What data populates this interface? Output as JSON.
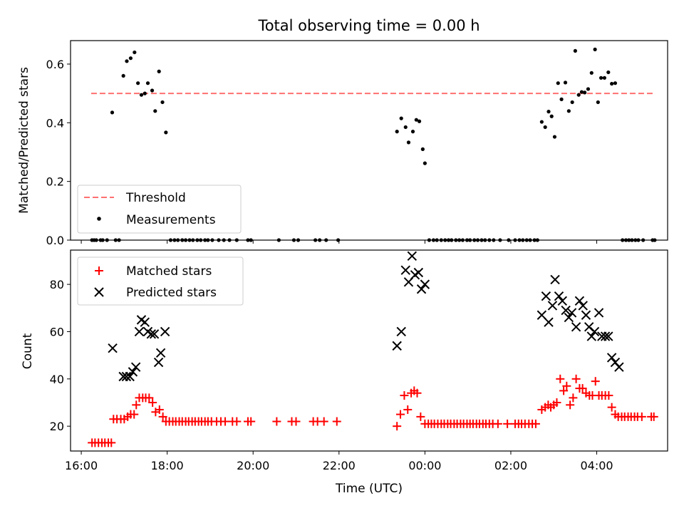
{
  "chart_data": [
    {
      "type": "scatter",
      "title": "Total observing time = 0.00 h",
      "xlabel": "",
      "ylabel": "Matched/Predicted stars",
      "xlim": [
        15.75,
        29.65
      ],
      "ylim": [
        0.0,
        0.68
      ],
      "yticks": [
        0.0,
        0.2,
        0.4,
        0.6
      ],
      "ytick_labels": [
        "0.0",
        "0.2",
        "0.4",
        "0.6"
      ],
      "xticks": [
        16,
        18,
        20,
        22,
        24,
        26,
        28
      ],
      "threshold": {
        "name": "Threshold",
        "value": 0.5,
        "x_range": [
          16.23,
          29.33
        ],
        "color": "#ff7070"
      },
      "measurements_name": "Measurements",
      "legend_position": "lower-left",
      "grid": false,
      "points": [
        [
          16.25,
          0.0
        ],
        [
          16.3,
          0.0
        ],
        [
          16.35,
          0.0
        ],
        [
          16.45,
          0.0
        ],
        [
          16.5,
          0.0
        ],
        [
          16.6,
          0.0
        ],
        [
          16.72,
          0.435
        ],
        [
          16.8,
          0.0
        ],
        [
          16.88,
          0.0
        ],
        [
          16.98,
          0.56
        ],
        [
          17.06,
          0.61
        ],
        [
          17.15,
          0.62
        ],
        [
          17.24,
          0.64
        ],
        [
          17.32,
          0.535
        ],
        [
          17.4,
          0.495
        ],
        [
          17.48,
          0.5
        ],
        [
          17.55,
          0.535
        ],
        [
          17.65,
          0.51
        ],
        [
          17.72,
          0.44
        ],
        [
          17.81,
          0.575
        ],
        [
          17.89,
          0.47
        ],
        [
          17.97,
          0.367
        ],
        [
          18.08,
          0.0
        ],
        [
          18.17,
          0.0
        ],
        [
          18.25,
          0.0
        ],
        [
          18.35,
          0.0
        ],
        [
          18.43,
          0.0
        ],
        [
          18.52,
          0.0
        ],
        [
          18.6,
          0.0
        ],
        [
          18.7,
          0.0
        ],
        [
          18.78,
          0.0
        ],
        [
          18.88,
          0.0
        ],
        [
          18.95,
          0.0
        ],
        [
          19.05,
          0.0
        ],
        [
          19.2,
          0.0
        ],
        [
          19.32,
          0.0
        ],
        [
          19.45,
          0.0
        ],
        [
          19.62,
          0.0
        ],
        [
          19.88,
          0.0
        ],
        [
          19.95,
          0.0
        ],
        [
          20.6,
          0.0
        ],
        [
          20.95,
          0.0
        ],
        [
          21.05,
          0.0
        ],
        [
          21.45,
          0.0
        ],
        [
          21.55,
          0.0
        ],
        [
          21.7,
          0.0
        ],
        [
          21.98,
          0.0
        ],
        [
          23.35,
          0.37
        ],
        [
          23.45,
          0.415
        ],
        [
          23.55,
          0.385
        ],
        [
          23.62,
          0.333
        ],
        [
          23.72,
          0.37
        ],
        [
          23.8,
          0.41
        ],
        [
          23.87,
          0.405
        ],
        [
          23.95,
          0.31
        ],
        [
          24.0,
          0.262
        ],
        [
          24.1,
          0.0
        ],
        [
          24.2,
          0.0
        ],
        [
          24.28,
          0.0
        ],
        [
          24.38,
          0.0
        ],
        [
          24.47,
          0.0
        ],
        [
          24.55,
          0.0
        ],
        [
          24.62,
          0.0
        ],
        [
          24.72,
          0.0
        ],
        [
          24.8,
          0.0
        ],
        [
          24.88,
          0.0
        ],
        [
          24.98,
          0.0
        ],
        [
          25.05,
          0.0
        ],
        [
          25.15,
          0.0
        ],
        [
          25.23,
          0.0
        ],
        [
          25.32,
          0.0
        ],
        [
          25.4,
          0.0
        ],
        [
          25.5,
          0.0
        ],
        [
          25.6,
          0.0
        ],
        [
          25.75,
          0.0
        ],
        [
          25.95,
          0.0
        ],
        [
          26.1,
          0.0
        ],
        [
          26.2,
          0.0
        ],
        [
          26.28,
          0.0
        ],
        [
          26.37,
          0.0
        ],
        [
          26.45,
          0.0
        ],
        [
          26.55,
          0.0
        ],
        [
          26.62,
          0.0
        ],
        [
          26.72,
          0.403
        ],
        [
          26.8,
          0.385
        ],
        [
          26.88,
          0.438
        ],
        [
          26.95,
          0.422
        ],
        [
          27.02,
          0.352
        ],
        [
          27.1,
          0.535
        ],
        [
          27.18,
          0.48
        ],
        [
          27.27,
          0.537
        ],
        [
          27.35,
          0.44
        ],
        [
          27.43,
          0.47
        ],
        [
          27.5,
          0.645
        ],
        [
          27.58,
          0.495
        ],
        [
          27.65,
          0.505
        ],
        [
          27.72,
          0.503
        ],
        [
          27.8,
          0.515
        ],
        [
          27.88,
          0.57
        ],
        [
          27.96,
          0.65
        ],
        [
          28.03,
          0.47
        ],
        [
          28.1,
          0.553
        ],
        [
          28.18,
          0.553
        ],
        [
          28.27,
          0.572
        ],
        [
          28.35,
          0.533
        ],
        [
          28.43,
          0.535
        ],
        [
          28.6,
          0.0
        ],
        [
          28.68,
          0.0
        ],
        [
          28.75,
          0.0
        ],
        [
          28.82,
          0.0
        ],
        [
          28.9,
          0.0
        ],
        [
          28.97,
          0.0
        ],
        [
          29.08,
          0.0
        ],
        [
          29.3,
          0.0
        ],
        [
          29.35,
          0.0
        ]
      ]
    },
    {
      "type": "scatter",
      "title": "",
      "xlabel": "Time (UTC)",
      "ylabel": "Count",
      "xlim": [
        15.75,
        29.65
      ],
      "ylim": [
        9.5,
        94.5
      ],
      "yticks": [
        20,
        40,
        60,
        80
      ],
      "ytick_labels": [
        "20",
        "40",
        "60",
        "80"
      ],
      "xticks": [
        16,
        18,
        20,
        22,
        24,
        26,
        28
      ],
      "xtick_labels": [
        "16:00",
        "18:00",
        "20:00",
        "22:00",
        "00:00",
        "02:00",
        "04:00"
      ],
      "legend_position": "upper-left",
      "grid": false,
      "series": [
        {
          "name": "Matched stars",
          "marker": "+",
          "color": "#ff0000",
          "points": [
            [
              16.25,
              13
            ],
            [
              16.32,
              13
            ],
            [
              16.4,
              13
            ],
            [
              16.48,
              13
            ],
            [
              16.55,
              13
            ],
            [
              16.63,
              13
            ],
            [
              16.7,
              13
            ],
            [
              16.75,
              23
            ],
            [
              16.83,
              23
            ],
            [
              16.92,
              23
            ],
            [
              17.0,
              23
            ],
            [
              17.08,
              24
            ],
            [
              17.15,
              25
            ],
            [
              17.23,
              25
            ],
            [
              17.28,
              29
            ],
            [
              17.35,
              32
            ],
            [
              17.43,
              32
            ],
            [
              17.5,
              32
            ],
            [
              17.58,
              32
            ],
            [
              17.66,
              30
            ],
            [
              17.73,
              26
            ],
            [
              17.82,
              27
            ],
            [
              17.9,
              24
            ],
            [
              17.97,
              22
            ],
            [
              18.05,
              22
            ],
            [
              18.13,
              22
            ],
            [
              18.2,
              22
            ],
            [
              18.28,
              22
            ],
            [
              18.35,
              22
            ],
            [
              18.43,
              22
            ],
            [
              18.5,
              22
            ],
            [
              18.58,
              22
            ],
            [
              18.65,
              22
            ],
            [
              18.73,
              22
            ],
            [
              18.8,
              22
            ],
            [
              18.88,
              22
            ],
            [
              18.95,
              22
            ],
            [
              19.03,
              22
            ],
            [
              19.15,
              22
            ],
            [
              19.25,
              22
            ],
            [
              19.35,
              22
            ],
            [
              19.52,
              22
            ],
            [
              19.62,
              22
            ],
            [
              19.88,
              22
            ],
            [
              19.95,
              22
            ],
            [
              20.55,
              22
            ],
            [
              20.9,
              22
            ],
            [
              21.0,
              22
            ],
            [
              21.4,
              22
            ],
            [
              21.5,
              22
            ],
            [
              21.65,
              22
            ],
            [
              21.95,
              22
            ],
            [
              23.35,
              20
            ],
            [
              23.43,
              25
            ],
            [
              23.52,
              33
            ],
            [
              23.6,
              27
            ],
            [
              23.68,
              34
            ],
            [
              23.75,
              35
            ],
            [
              23.82,
              34
            ],
            [
              23.9,
              24
            ],
            [
              24.0,
              21
            ],
            [
              24.08,
              21
            ],
            [
              24.15,
              21
            ],
            [
              24.22,
              21
            ],
            [
              24.3,
              21
            ],
            [
              24.38,
              21
            ],
            [
              24.45,
              21
            ],
            [
              24.53,
              21
            ],
            [
              24.6,
              21
            ],
            [
              24.68,
              21
            ],
            [
              24.75,
              21
            ],
            [
              24.83,
              21
            ],
            [
              24.9,
              21
            ],
            [
              24.98,
              21
            ],
            [
              25.05,
              21
            ],
            [
              25.12,
              21
            ],
            [
              25.2,
              21
            ],
            [
              25.27,
              21
            ],
            [
              25.35,
              21
            ],
            [
              25.42,
              21
            ],
            [
              25.5,
              21
            ],
            [
              25.58,
              21
            ],
            [
              25.7,
              21
            ],
            [
              25.92,
              21
            ],
            [
              26.1,
              21
            ],
            [
              26.18,
              21
            ],
            [
              26.25,
              21
            ],
            [
              26.33,
              21
            ],
            [
              26.42,
              21
            ],
            [
              26.5,
              21
            ],
            [
              26.58,
              21
            ],
            [
              26.72,
              27
            ],
            [
              26.8,
              28
            ],
            [
              26.87,
              29
            ],
            [
              26.93,
              28
            ],
            [
              27.0,
              29
            ],
            [
              27.07,
              30
            ],
            [
              27.15,
              40
            ],
            [
              27.23,
              35
            ],
            [
              27.3,
              37
            ],
            [
              27.38,
              29
            ],
            [
              27.45,
              32
            ],
            [
              27.52,
              40
            ],
            [
              27.6,
              36
            ],
            [
              27.67,
              36
            ],
            [
              27.75,
              34
            ],
            [
              27.83,
              33
            ],
            [
              27.9,
              33
            ],
            [
              27.97,
              39
            ],
            [
              28.05,
              33
            ],
            [
              28.12,
              33
            ],
            [
              28.2,
              33
            ],
            [
              28.28,
              33
            ],
            [
              28.35,
              28
            ],
            [
              28.43,
              25
            ],
            [
              28.5,
              24
            ],
            [
              28.58,
              24
            ],
            [
              28.65,
              24
            ],
            [
              28.73,
              24
            ],
            [
              28.8,
              24
            ],
            [
              28.88,
              24
            ],
            [
              28.95,
              24
            ],
            [
              29.05,
              24
            ],
            [
              29.27,
              24
            ],
            [
              29.33,
              24
            ]
          ]
        },
        {
          "name": "Predicted stars",
          "marker": "x",
          "color": "#000000",
          "points": [
            [
              16.73,
              53
            ],
            [
              16.98,
              41
            ],
            [
              17.05,
              41
            ],
            [
              17.13,
              41
            ],
            [
              17.2,
              43
            ],
            [
              17.27,
              45
            ],
            [
              17.35,
              60
            ],
            [
              17.4,
              65
            ],
            [
              17.48,
              64
            ],
            [
              17.55,
              60
            ],
            [
              17.63,
              59
            ],
            [
              17.7,
              59
            ],
            [
              17.8,
              47
            ],
            [
              17.85,
              51
            ],
            [
              17.95,
              60
            ],
            [
              23.35,
              54
            ],
            [
              23.45,
              60
            ],
            [
              23.55,
              86
            ],
            [
              23.62,
              81
            ],
            [
              23.7,
              92
            ],
            [
              23.77,
              84
            ],
            [
              23.85,
              85
            ],
            [
              23.92,
              78
            ],
            [
              24.0,
              80
            ],
            [
              26.72,
              67
            ],
            [
              26.82,
              75
            ],
            [
              26.88,
              64
            ],
            [
              26.97,
              71
            ],
            [
              27.03,
              82
            ],
            [
              27.12,
              75
            ],
            [
              27.2,
              73
            ],
            [
              27.28,
              69
            ],
            [
              27.35,
              66
            ],
            [
              27.42,
              68
            ],
            [
              27.52,
              62
            ],
            [
              27.6,
              73
            ],
            [
              27.68,
              71
            ],
            [
              27.75,
              67
            ],
            [
              27.82,
              62
            ],
            [
              27.88,
              58
            ],
            [
              27.95,
              60
            ],
            [
              28.05,
              68
            ],
            [
              28.12,
              58
            ],
            [
              28.2,
              58
            ],
            [
              28.27,
              58
            ],
            [
              28.35,
              49
            ],
            [
              28.43,
              47
            ],
            [
              28.52,
              45
            ]
          ]
        }
      ]
    }
  ]
}
